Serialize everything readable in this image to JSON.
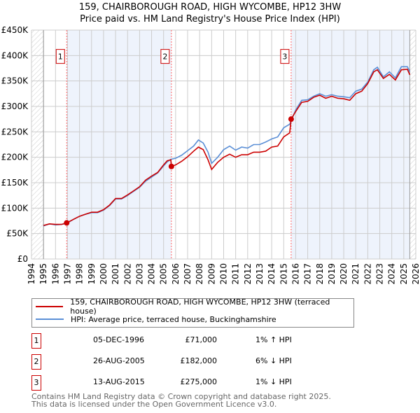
{
  "chart_data": {
    "type": "line",
    "title": "159, CHAIRBOROUGH ROAD, HIGH WYCOMBE, HP12 3HW",
    "subtitle": "Price paid vs. HM Land Registry's House Price Index (HPI)",
    "xlim": [
      1994,
      2026
    ],
    "ylim": [
      0,
      450000
    ],
    "x_ticks": [
      "1994",
      "1995",
      "1996",
      "1997",
      "1998",
      "1999",
      "2000",
      "2001",
      "2002",
      "2003",
      "2004",
      "2005",
      "2006",
      "2007",
      "2008",
      "2009",
      "2010",
      "2011",
      "2012",
      "2013",
      "2014",
      "2015",
      "2016",
      "2017",
      "2018",
      "2019",
      "2020",
      "2021",
      "2022",
      "2023",
      "2024",
      "2025",
      "2026"
    ],
    "y_ticks": [
      {
        "v": 0,
        "label": "£0"
      },
      {
        "v": 50000,
        "label": "£50K"
      },
      {
        "v": 100000,
        "label": "£100K"
      },
      {
        "v": 150000,
        "label": "£150K"
      },
      {
        "v": 200000,
        "label": "£200K"
      },
      {
        "v": 250000,
        "label": "£250K"
      },
      {
        "v": 300000,
        "label": "£300K"
      },
      {
        "v": 350000,
        "label": "£350K"
      },
      {
        "v": 400000,
        "label": "£400K"
      },
      {
        "v": 450000,
        "label": "£450K"
      }
    ],
    "grid": true,
    "series": [
      {
        "name": "159, CHAIRBOROUGH ROAD, HIGH WYCOMBE, HP12 3HW (terraced house)",
        "color": "#cc0000",
        "x": [
          1995,
          1995.5,
          1996,
          1996.5,
          1996.93,
          1997.5,
          1998,
          1998.5,
          1999,
          1999.5,
          2000,
          2000.5,
          2001,
          2001.5,
          2002,
          2002.5,
          2003,
          2003.5,
          2004,
          2004.5,
          2005,
          2005.3,
          2005.6,
          2005.65,
          2006,
          2006.5,
          2007,
          2007.5,
          2007.9,
          2008.3,
          2008.7,
          2009,
          2009.5,
          2010,
          2010.5,
          2011,
          2011.5,
          2012,
          2012.5,
          2013,
          2013.5,
          2014,
          2014.5,
          2015,
          2015.5,
          2015.62,
          2016,
          2016.5,
          2017,
          2017.5,
          2018,
          2018.5,
          2019,
          2019.5,
          2020,
          2020.5,
          2021,
          2021.5,
          2022,
          2022.5,
          2022.8,
          2023.3,
          2023.8,
          2024.3,
          2024.8,
          2025.3,
          2025.5
        ],
        "y": [
          66000,
          69000,
          68000,
          68000,
          71000,
          78000,
          84000,
          88000,
          92000,
          92000,
          97000,
          106000,
          119000,
          119000,
          126000,
          134000,
          142000,
          155000,
          163000,
          170000,
          185000,
          193000,
          195000,
          182000,
          185000,
          192000,
          201000,
          212000,
          220000,
          215000,
          195000,
          176000,
          190000,
          200000,
          206000,
          200000,
          205000,
          205000,
          210000,
          210000,
          212000,
          220000,
          222000,
          240000,
          248000,
          275000,
          290000,
          308000,
          310000,
          318000,
          322000,
          316000,
          320000,
          316000,
          315000,
          312000,
          325000,
          330000,
          345000,
          368000,
          372000,
          355000,
          363000,
          352000,
          372000,
          373000,
          362000
        ]
      },
      {
        "name": "HPI: Average price, terraced house, Buckinghamshire",
        "color": "#5b8fd6",
        "x": [
          1995,
          1995.5,
          1996,
          1996.5,
          1996.93,
          1997.5,
          1998,
          1998.5,
          1999,
          1999.5,
          2000,
          2000.5,
          2001,
          2001.5,
          2002,
          2002.5,
          2003,
          2003.5,
          2004,
          2004.5,
          2005,
          2005.3,
          2005.6,
          2006,
          2006.5,
          2007,
          2007.5,
          2007.9,
          2008.3,
          2008.7,
          2009,
          2009.5,
          2010,
          2010.5,
          2011,
          2011.5,
          2012,
          2012.5,
          2013,
          2013.5,
          2014,
          2014.5,
          2015,
          2015.5,
          2016,
          2016.5,
          2017,
          2017.5,
          2018,
          2018.5,
          2019,
          2019.5,
          2020,
          2020.5,
          2021,
          2021.5,
          2022,
          2022.5,
          2022.8,
          2023.3,
          2023.8,
          2024.3,
          2024.8,
          2025.3,
          2025.5
        ],
        "y": [
          65000,
          69000,
          67000,
          68000,
          70000,
          78000,
          84000,
          88000,
          91000,
          91000,
          96000,
          105000,
          118000,
          118000,
          125000,
          133000,
          141000,
          153000,
          161000,
          169000,
          183000,
          191000,
          196000,
          198000,
          204000,
          213000,
          222000,
          234000,
          228000,
          210000,
          188000,
          200000,
          215000,
          222000,
          214000,
          220000,
          218000,
          225000,
          225000,
          230000,
          236000,
          240000,
          258000,
          265000,
          293000,
          312000,
          313000,
          320000,
          325000,
          320000,
          323000,
          320000,
          319000,
          317000,
          330000,
          334000,
          348000,
          372000,
          377000,
          358000,
          368000,
          356000,
          378000,
          378000,
          368000
        ]
      }
    ],
    "sales": [
      {
        "id": "1",
        "x": 1996.93,
        "y": 71000,
        "date": "05-DEC-1996",
        "price": "£71,000",
        "hpi": "1% ↑ HPI"
      },
      {
        "id": "2",
        "x": 2005.65,
        "y": 182000,
        "date": "26-AUG-2005",
        "price": "£182,000",
        "hpi": "6% ↓ HPI"
      },
      {
        "id": "3",
        "x": 2015.62,
        "y": 275000,
        "date": "13-AUG-2015",
        "price": "£275,000",
        "hpi": "1% ↓ HPI"
      }
    ],
    "data_end": 2025.5
  },
  "footer": {
    "line1": "Contains HM Land Registry data © Crown copyright and database right 2025.",
    "line2": "This data is licensed under the Open Government Licence v3.0."
  }
}
